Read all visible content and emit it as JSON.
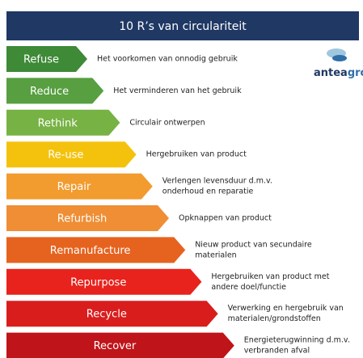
{
  "header": {
    "title": "10 R’s van circulariteit"
  },
  "logo": {
    "brand": "antea",
    "suffix": "group"
  },
  "rows": [
    {
      "label": "Refuse",
      "color": "#3e8a37",
      "description": [
        "Het voorkomen van onnodig gebruik"
      ]
    },
    {
      "label": "Reduce",
      "color": "#579f40",
      "description": [
        "Het verminderen van het gebruik"
      ]
    },
    {
      "label": "Rethink",
      "color": "#77b244",
      "description": [
        "Circulair ontwerpen"
      ]
    },
    {
      "label": "Re-use",
      "color": "#f4c20d",
      "description": [
        "Hergebruiken van product"
      ]
    },
    {
      "label": "Repair",
      "color": "#f29b2f",
      "description": [
        "Verlengen levensduur d.m.v.",
        "onderhoud en reparatie"
      ]
    },
    {
      "label": "Refurbish",
      "color": "#ef8e35",
      "description": [
        "Opknappen van product"
      ]
    },
    {
      "label": "Remanufacture",
      "color": "#e6631f",
      "description": [
        "Nieuw product van secundaire",
        "materialen"
      ]
    },
    {
      "label": "Repurpose",
      "color": "#e8221c",
      "description": [
        "Hergebruiken van product met",
        "andere doel/functie"
      ]
    },
    {
      "label": "Recycle",
      "color": "#d91d1d",
      "description": [
        "Verwerking en hergebruik van",
        "materialen/grondstoffen"
      ]
    },
    {
      "label": "Recover",
      "color": "#bf1419",
      "description": [
        "Energieterugwinning d.m.v.",
        "verbranden afval"
      ]
    }
  ]
}
